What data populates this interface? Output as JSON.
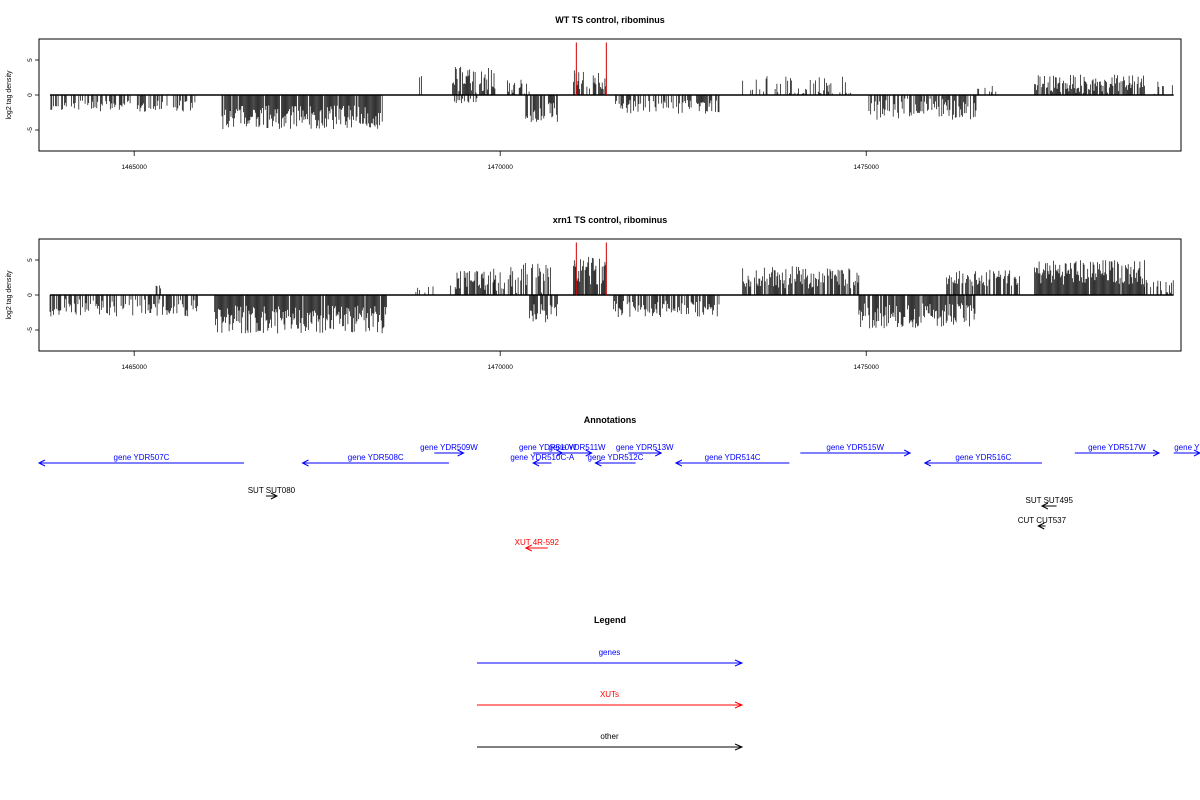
{
  "colors": {
    "genes": "#0000ff",
    "XUTs": "#ff0000",
    "other": "#000000",
    "highlight": "#cc0000"
  },
  "chart_data": [
    {
      "type": "bar",
      "title": "WT TS control, ribominus",
      "ylabel": "log2 tag density",
      "xlim": [
        1463700,
        1479300
      ],
      "ylim": [
        -8,
        8
      ],
      "yticks": [
        -5,
        0,
        5
      ],
      "xticks": [
        1465000,
        1470000,
        1475000
      ],
      "red_spikes": [
        {
          "x": 1471040,
          "y": 7.5
        },
        {
          "x": 1471450,
          "y": 7.5
        }
      ],
      "regions": [
        {
          "x0": 1463850,
          "x1": 1465850,
          "sign": -1,
          "mean": 1.6,
          "amp": 0.8,
          "density": 0.45
        },
        {
          "x0": 1466200,
          "x1": 1468400,
          "sign": -1,
          "mean": 3.2,
          "amp": 1.7,
          "density": 0.92
        },
        {
          "x0": 1468900,
          "x1": 1468960,
          "sign": 1,
          "mean": 2.6,
          "amp": 0.1,
          "density": 0.7
        },
        {
          "x0": 1469350,
          "x1": 1469950,
          "sign": 1,
          "mean": 2.3,
          "amp": 2.0,
          "density": 0.75
        },
        {
          "x0": 1469350,
          "x1": 1469700,
          "sign": -1,
          "mean": 0.8,
          "amp": 0.4,
          "density": 0.3
        },
        {
          "x0": 1470100,
          "x1": 1470400,
          "sign": 1,
          "mean": 1.2,
          "amp": 1.0,
          "density": 0.3
        },
        {
          "x0": 1470350,
          "x1": 1470800,
          "sign": -1,
          "mean": 2.4,
          "amp": 1.5,
          "density": 0.7
        },
        {
          "x0": 1471000,
          "x1": 1471450,
          "sign": 1,
          "mean": 2.2,
          "amp": 1.4,
          "density": 0.8
        },
        {
          "x0": 1471550,
          "x1": 1473000,
          "sign": -1,
          "mean": 1.7,
          "amp": 1.0,
          "density": 0.55
        },
        {
          "x0": 1473300,
          "x1": 1474800,
          "sign": 1,
          "mean": 1.2,
          "amp": 1.5,
          "density": 0.35
        },
        {
          "x0": 1475000,
          "x1": 1476500,
          "sign": -1,
          "mean": 2.0,
          "amp": 1.6,
          "density": 0.7
        },
        {
          "x0": 1476500,
          "x1": 1476800,
          "sign": 1,
          "mean": 0.8,
          "amp": 0.5,
          "density": 0.3
        },
        {
          "x0": 1477300,
          "x1": 1478800,
          "sign": 1,
          "mean": 1.6,
          "amp": 1.3,
          "density": 0.85
        },
        {
          "x0": 1478800,
          "x1": 1479200,
          "sign": 1,
          "mean": 1.0,
          "amp": 1.2,
          "density": 0.3
        }
      ]
    },
    {
      "type": "bar",
      "title": "xrn1 TS control, ribominus",
      "ylabel": "log2 tag density",
      "xlim": [
        1463700,
        1479300
      ],
      "ylim": [
        -8,
        8
      ],
      "yticks": [
        -5,
        0,
        5
      ],
      "xticks": [
        1465000,
        1470000,
        1475000
      ],
      "red_spikes": [
        {
          "x": 1471040,
          "y": 7.5
        },
        {
          "x": 1471450,
          "y": 7.5
        }
      ],
      "regions": [
        {
          "x0": 1463850,
          "x1": 1465900,
          "sign": -1,
          "mean": 1.8,
          "amp": 1.3,
          "density": 0.55
        },
        {
          "x0": 1465300,
          "x1": 1465450,
          "sign": 1,
          "mean": 1.3,
          "amp": 0.4,
          "density": 0.2
        },
        {
          "x0": 1466100,
          "x1": 1468450,
          "sign": -1,
          "mean": 3.5,
          "amp": 2.0,
          "density": 0.95
        },
        {
          "x0": 1468800,
          "x1": 1469100,
          "sign": 1,
          "mean": 0.8,
          "amp": 0.5,
          "density": 0.2
        },
        {
          "x0": 1469300,
          "x1": 1469950,
          "sign": 1,
          "mean": 2.2,
          "amp": 1.5,
          "density": 0.7
        },
        {
          "x0": 1469900,
          "x1": 1470700,
          "sign": 1,
          "mean": 2.5,
          "amp": 2.2,
          "density": 0.6
        },
        {
          "x0": 1470400,
          "x1": 1470800,
          "sign": -1,
          "mean": 2.5,
          "amp": 1.4,
          "density": 0.7
        },
        {
          "x0": 1471000,
          "x1": 1471450,
          "sign": 1,
          "mean": 3.5,
          "amp": 2.0,
          "density": 0.95
        },
        {
          "x0": 1471550,
          "x1": 1473000,
          "sign": -1,
          "mean": 2.0,
          "amp": 1.2,
          "density": 0.6
        },
        {
          "x0": 1473300,
          "x1": 1474900,
          "sign": 1,
          "mean": 2.5,
          "amp": 1.6,
          "density": 0.8
        },
        {
          "x0": 1474900,
          "x1": 1476500,
          "sign": -1,
          "mean": 3.0,
          "amp": 1.8,
          "density": 0.85
        },
        {
          "x0": 1476100,
          "x1": 1477100,
          "sign": 1,
          "mean": 2.4,
          "amp": 1.2,
          "density": 0.75
        },
        {
          "x0": 1477300,
          "x1": 1478800,
          "sign": 1,
          "mean": 3.3,
          "amp": 1.8,
          "density": 0.95
        },
        {
          "x0": 1478800,
          "x1": 1479200,
          "sign": 1,
          "mean": 1.3,
          "amp": 1.0,
          "density": 0.4
        }
      ]
    }
  ],
  "annotations": {
    "title": "Annotations",
    "features": [
      {
        "label": "gene YDR507C",
        "color": "genes",
        "start": 1463700,
        "end": 1466500,
        "strand": "-",
        "row": 1,
        "label_side": "above"
      },
      {
        "label": "gene YDR508C",
        "color": "genes",
        "start": 1467300,
        "end": 1469300,
        "strand": "-",
        "row": 1,
        "label_side": "above"
      },
      {
        "label": "gene YDR509W",
        "color": "genes",
        "start": 1469100,
        "end": 1469500,
        "strand": "+",
        "row": 0,
        "label_side": "above"
      },
      {
        "label": "gene YDR510W",
        "color": "genes",
        "start": 1470450,
        "end": 1470850,
        "strand": "+",
        "row": 0,
        "label_side": "above"
      },
      {
        "label": "gene YDR511W",
        "color": "genes",
        "start": 1470850,
        "end": 1471250,
        "strand": "+",
        "row": 0,
        "label_side": "above"
      },
      {
        "label": "gene YDR510C-A",
        "color": "genes",
        "start": 1470450,
        "end": 1470700,
        "strand": "-",
        "row": 1,
        "label_side": "above"
      },
      {
        "label": "gene YDR512C",
        "color": "genes",
        "start": 1471300,
        "end": 1471850,
        "strand": "-",
        "row": 1,
        "label_side": "above"
      },
      {
        "label": "gene YDR513W",
        "color": "genes",
        "start": 1471750,
        "end": 1472200,
        "strand": "+",
        "row": 0,
        "label_side": "above"
      },
      {
        "label": "gene YDR514C",
        "color": "genes",
        "start": 1472400,
        "end": 1473950,
        "strand": "-",
        "row": 1,
        "label_side": "above"
      },
      {
        "label": "gene YDR515W",
        "color": "genes",
        "start": 1474100,
        "end": 1475600,
        "strand": "+",
        "row": 0,
        "label_side": "above"
      },
      {
        "label": "gene YDR516C",
        "color": "genes",
        "start": 1475800,
        "end": 1477400,
        "strand": "-",
        "row": 1,
        "label_side": "above"
      },
      {
        "label": "gene YDR517W",
        "color": "genes",
        "start": 1477850,
        "end": 1479000,
        "strand": "+",
        "row": 0,
        "label_side": "above"
      },
      {
        "label": "gene Y",
        "color": "genes",
        "start": 1479200,
        "end": 1479600,
        "strand": "+",
        "row": 0,
        "label_side": "above"
      },
      {
        "label": "SUT SUT080",
        "color": "other",
        "start": 1466800,
        "end": 1466950,
        "strand": "+",
        "row": 2,
        "label_side": "above"
      },
      {
        "label": "SUT SUT495",
        "color": "other",
        "start": 1477400,
        "end": 1477600,
        "strand": "-",
        "row": 3,
        "label_side": "above"
      },
      {
        "label": "CUT CUT537",
        "color": "other",
        "start": 1477350,
        "end": 1477450,
        "strand": "-",
        "row": 4,
        "label_side": "above"
      },
      {
        "label": "XUT 4R-592",
        "color": "XUTs",
        "start": 1470350,
        "end": 1470650,
        "strand": "-",
        "row": 5,
        "label_side": "above"
      }
    ]
  },
  "legend": {
    "title": "Legend",
    "items": [
      {
        "label": "genes",
        "color": "genes"
      },
      {
        "label": "XUTs",
        "color": "XUTs"
      },
      {
        "label": "other",
        "color": "other"
      }
    ]
  }
}
